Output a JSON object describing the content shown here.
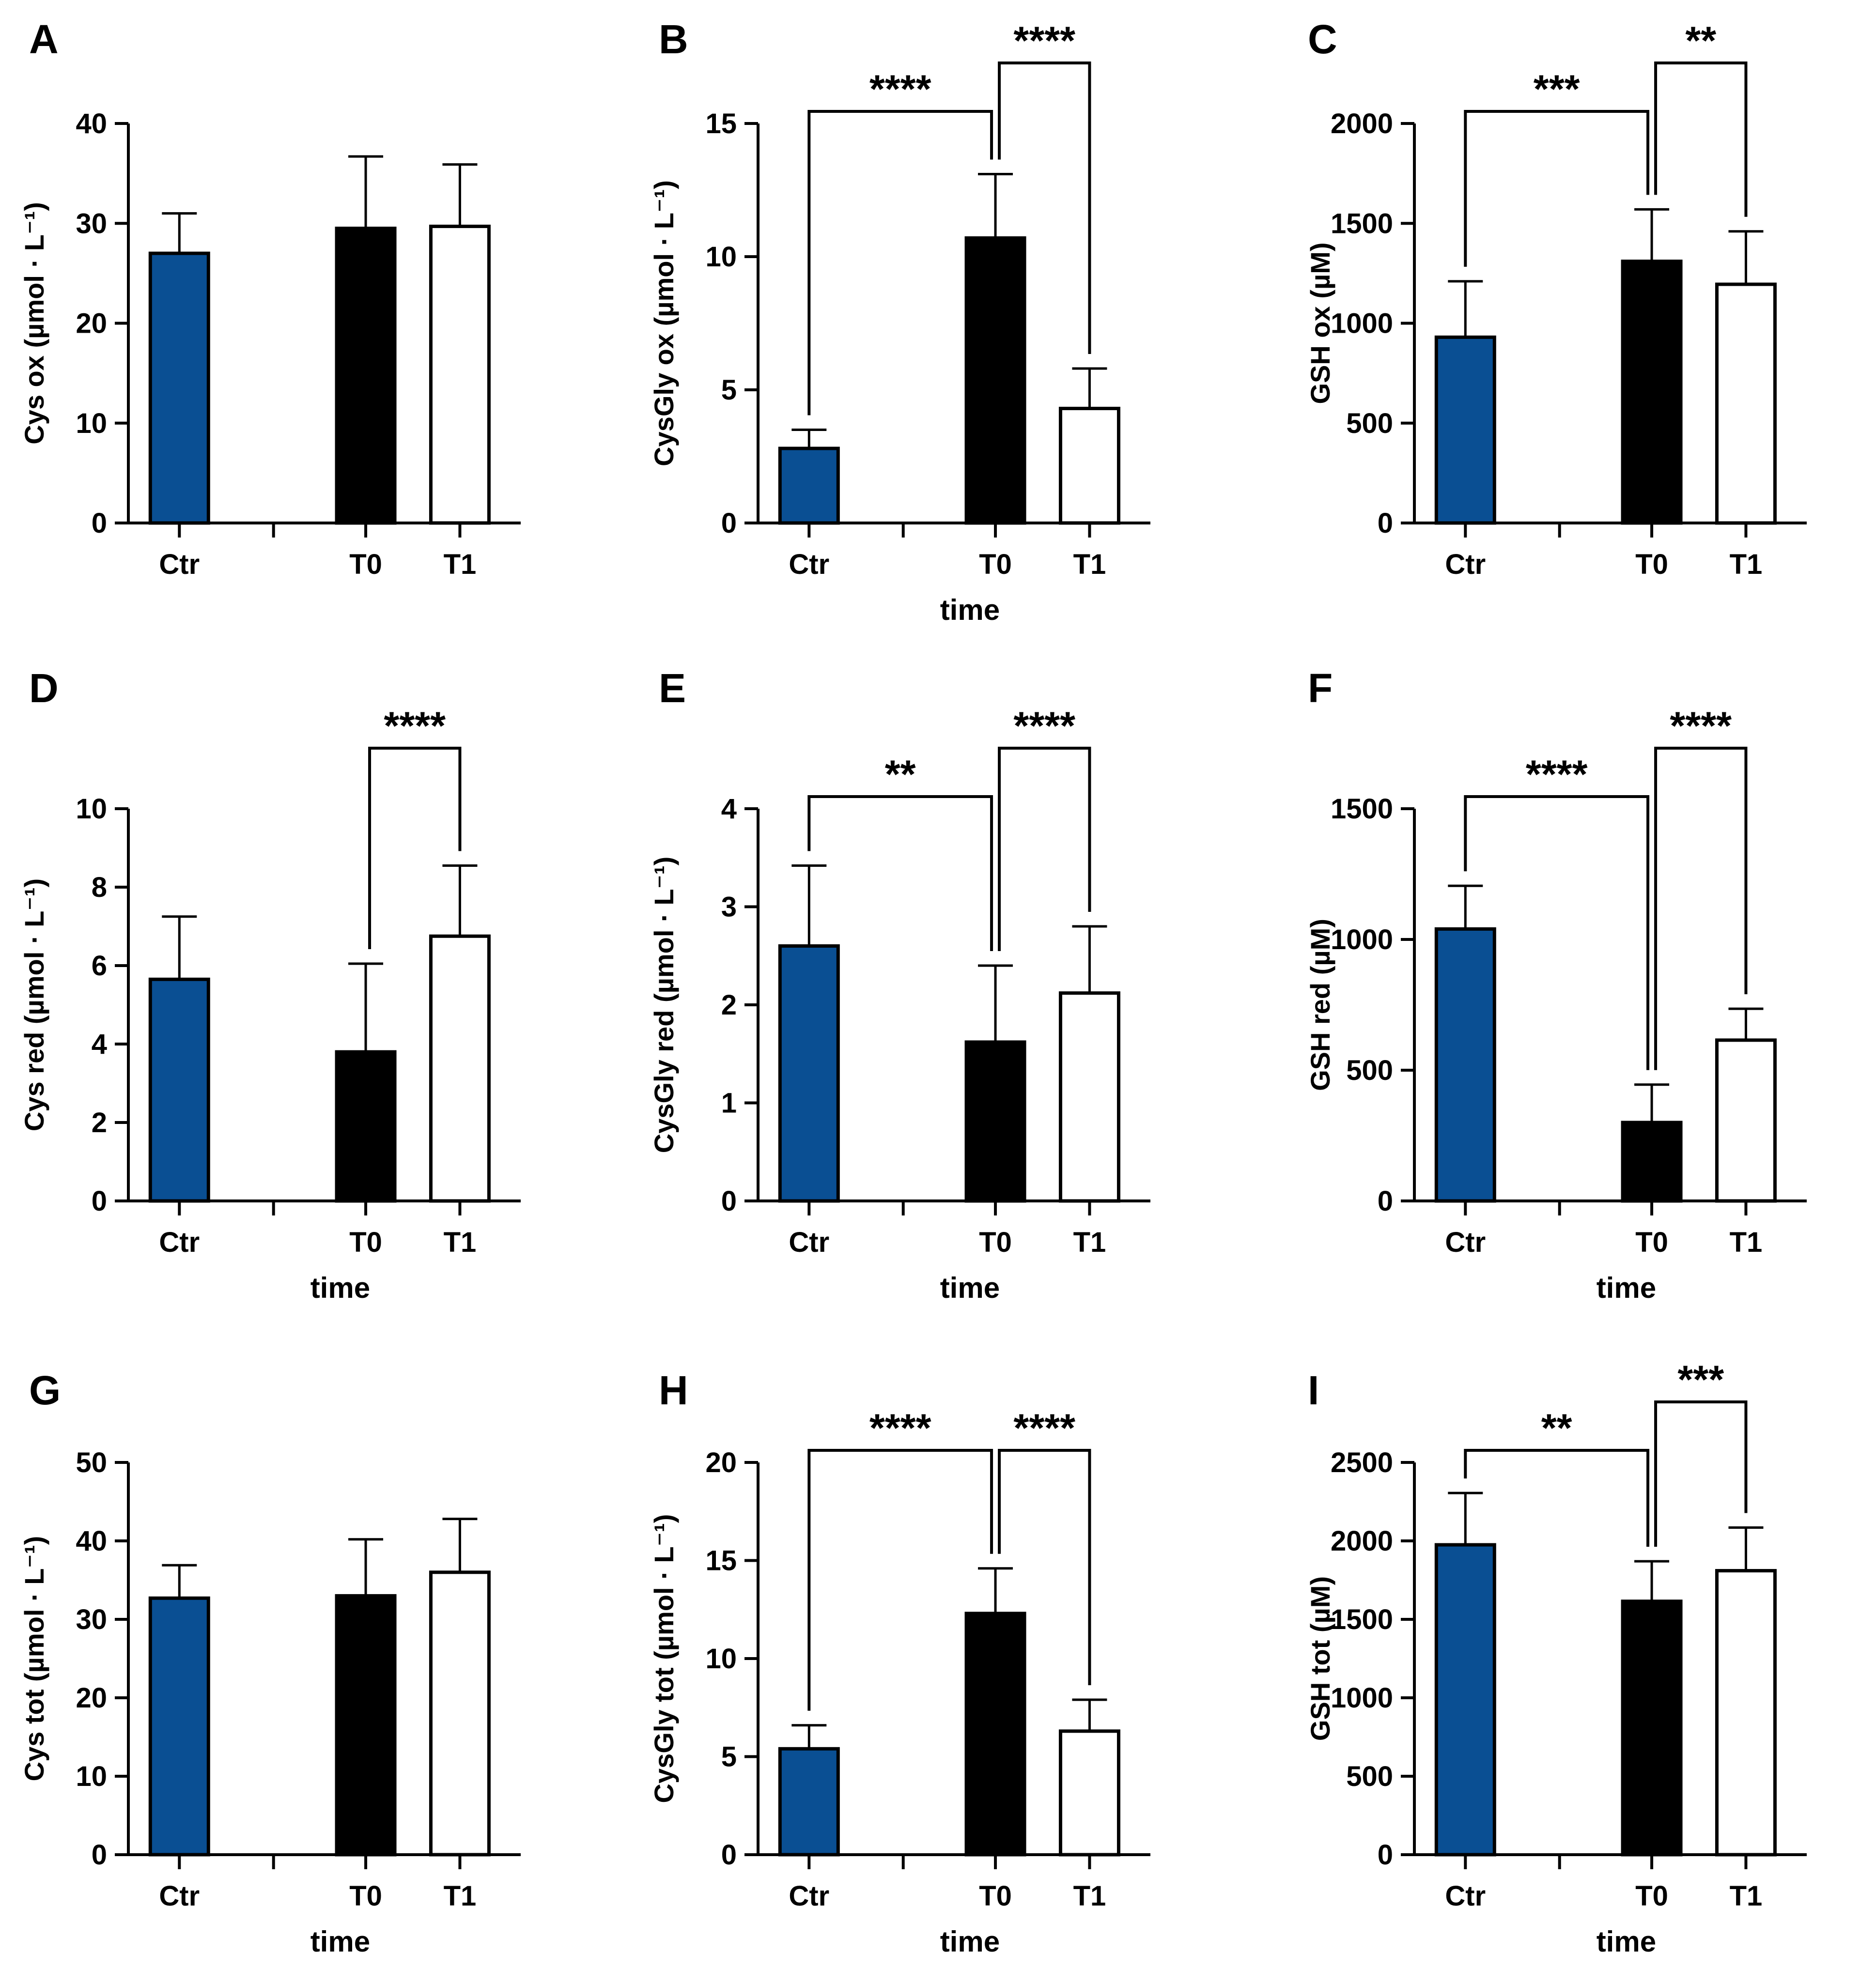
{
  "colors": {
    "ctr": "#0a4f93",
    "t0": "#000000",
    "t1": "#ffffff",
    "stroke": "#000000"
  },
  "chart_data": [
    {
      "type": "bar",
      "panel": "A",
      "ylabel": "Cys ox (µmol · L⁻¹)",
      "xlabel": "",
      "categories": [
        "Ctr",
        "T0",
        "T1"
      ],
      "values": [
        27,
        29.5,
        29.7
      ],
      "errors": [
        4,
        7.2,
        6.2
      ],
      "ylim": [
        0,
        40
      ],
      "yticks": [
        0,
        10,
        20,
        30,
        40
      ],
      "sig": []
    },
    {
      "type": "bar",
      "panel": "B",
      "ylabel": "CysGly ox (µmol · L⁻¹)",
      "xlabel": "time",
      "categories": [
        "Ctr",
        "T0",
        "T1"
      ],
      "values": [
        2.8,
        10.7,
        4.3
      ],
      "errors": [
        0.7,
        2.4,
        1.5
      ],
      "ylim": [
        0,
        15
      ],
      "yticks": [
        0,
        5,
        10,
        15
      ],
      "sig": [
        {
          "from": 0,
          "to": 1,
          "label": "****",
          "level": 0
        },
        {
          "from": 1,
          "to": 2,
          "label": "****",
          "level": 1
        }
      ]
    },
    {
      "type": "bar",
      "panel": "C",
      "ylabel": "GSH ox (µM)",
      "xlabel": "",
      "categories": [
        "Ctr",
        "T0",
        "T1"
      ],
      "values": [
        930,
        1310,
        1195
      ],
      "errors": [
        280,
        260,
        265
      ],
      "ylim": [
        0,
        2000
      ],
      "yticks": [
        0,
        500,
        1000,
        1500,
        2000
      ],
      "sig": [
        {
          "from": 0,
          "to": 1,
          "label": "***",
          "level": 0
        },
        {
          "from": 1,
          "to": 2,
          "label": "**",
          "level": 1
        }
      ]
    },
    {
      "type": "bar",
      "panel": "D",
      "ylabel": "Cys red (µmol · L⁻¹)",
      "xlabel": "time",
      "categories": [
        "Ctr",
        "T0",
        "T1"
      ],
      "values": [
        5.65,
        3.8,
        6.75
      ],
      "errors": [
        1.6,
        2.25,
        1.8
      ],
      "ylim": [
        0,
        10
      ],
      "yticks": [
        0,
        2,
        4,
        6,
        8,
        10
      ],
      "sig": [
        {
          "from": 1,
          "to": 2,
          "label": "****",
          "level": 1
        }
      ]
    },
    {
      "type": "bar",
      "panel": "E",
      "ylabel": "CysGly red (µmol · L⁻¹)",
      "xlabel": "time",
      "categories": [
        "Ctr",
        "T0",
        "T1"
      ],
      "values": [
        2.6,
        1.62,
        2.12
      ],
      "errors": [
        0.82,
        0.78,
        0.68
      ],
      "ylim": [
        0,
        4
      ],
      "yticks": [
        0,
        1,
        2,
        3,
        4
      ],
      "sig": [
        {
          "from": 0,
          "to": 1,
          "label": "**",
          "level": 0
        },
        {
          "from": 1,
          "to": 2,
          "label": "****",
          "level": 1
        }
      ]
    },
    {
      "type": "bar",
      "panel": "F",
      "ylabel": "GSH red (µM)",
      "xlabel": "time",
      "categories": [
        "Ctr",
        "T0",
        "T1"
      ],
      "values": [
        1040,
        300,
        615
      ],
      "errors": [
        165,
        145,
        120
      ],
      "ylim": [
        0,
        1500
      ],
      "yticks": [
        0,
        500,
        1000,
        1500
      ],
      "sig": [
        {
          "from": 0,
          "to": 1,
          "label": "****",
          "level": 0
        },
        {
          "from": 1,
          "to": 2,
          "label": "****",
          "level": 1
        }
      ]
    },
    {
      "type": "bar",
      "panel": "G",
      "ylabel": "Cys tot (µmol · L⁻¹)",
      "xlabel": "time",
      "categories": [
        "Ctr",
        "T0",
        "T1"
      ],
      "values": [
        32.7,
        33,
        36
      ],
      "errors": [
        4.2,
        7.2,
        6.8
      ],
      "ylim": [
        0,
        50
      ],
      "yticks": [
        0,
        10,
        20,
        30,
        40,
        50
      ],
      "sig": []
    },
    {
      "type": "bar",
      "panel": "H",
      "ylabel": "CysGly tot (µmol · L⁻¹)",
      "xlabel": "time",
      "categories": [
        "Ctr",
        "T0",
        "T1"
      ],
      "values": [
        5.4,
        12.3,
        6.3
      ],
      "errors": [
        1.2,
        2.3,
        1.6
      ],
      "ylim": [
        0,
        20
      ],
      "yticks": [
        0,
        5,
        10,
        15,
        20
      ],
      "sig": [
        {
          "from": 0,
          "to": 1,
          "label": "****",
          "level": 0
        },
        {
          "from": 1,
          "to": 2,
          "label": "****",
          "level": 0
        }
      ]
    },
    {
      "type": "bar",
      "panel": "I",
      "ylabel": "GSH tot (µM)",
      "xlabel": "time",
      "categories": [
        "Ctr",
        "T0",
        "T1"
      ],
      "values": [
        1975,
        1615,
        1810
      ],
      "errors": [
        330,
        255,
        275
      ],
      "ylim": [
        0,
        2500
      ],
      "yticks": [
        0,
        500,
        1000,
        1500,
        2000,
        2500
      ],
      "sig": [
        {
          "from": 0,
          "to": 1,
          "label": "**",
          "level": 0
        },
        {
          "from": 1,
          "to": 2,
          "label": "***",
          "level": 1
        }
      ]
    }
  ]
}
